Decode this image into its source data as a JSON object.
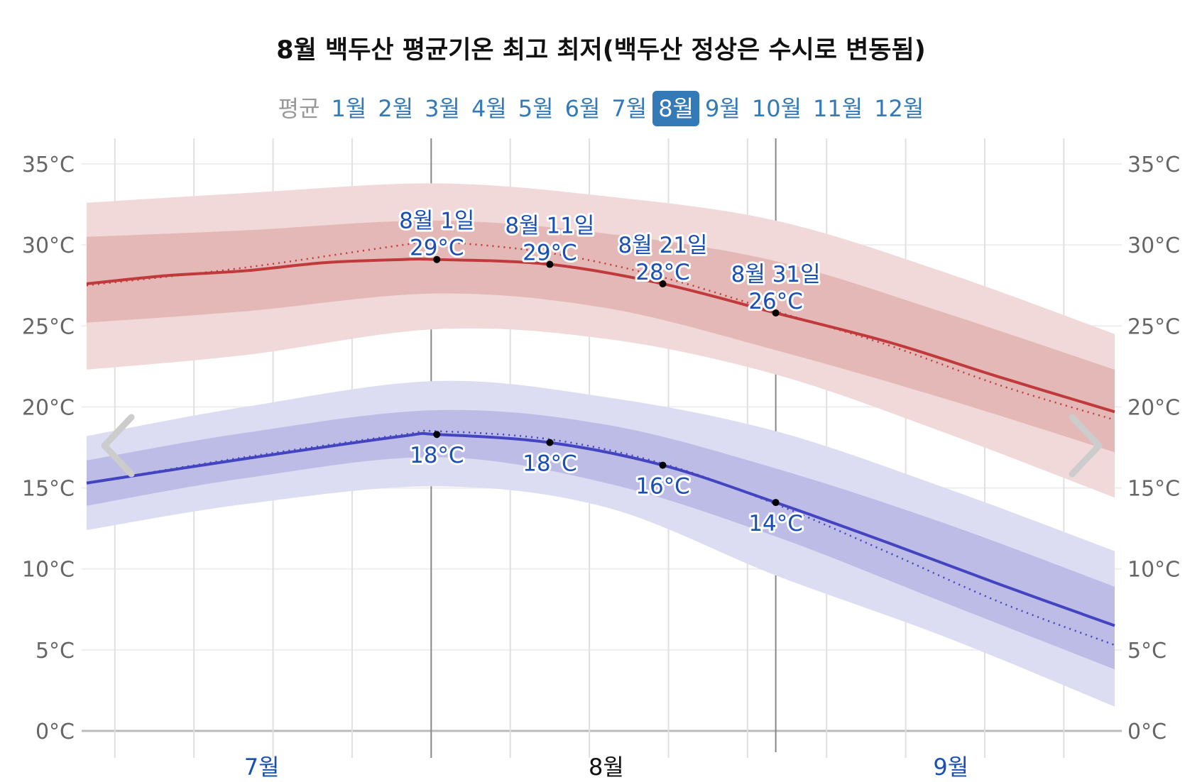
{
  "title": "8월 백두산 평균기온 최고 최저(백두산 정상은 수시로 변동됨)",
  "tabs": [
    {
      "label": "평균",
      "active": false
    },
    {
      "label": "1월",
      "active": false
    },
    {
      "label": "2월",
      "active": false
    },
    {
      "label": "3월",
      "active": false
    },
    {
      "label": "4월",
      "active": false
    },
    {
      "label": "5월",
      "active": false
    },
    {
      "label": "6월",
      "active": false
    },
    {
      "label": "7월",
      "active": false
    },
    {
      "label": "8월",
      "active": true
    },
    {
      "label": "9월",
      "active": false
    },
    {
      "label": "10월",
      "active": false
    },
    {
      "label": "11월",
      "active": false
    },
    {
      "label": "12월",
      "active": false
    }
  ],
  "nav": {
    "prev_icon": "chevron-left-icon",
    "next_icon": "chevron-right-icon"
  },
  "chart_data": {
    "type": "area",
    "title": "8월 백두산 평균기온 최고 최저(백두산 정상은 수시로 변동됨)",
    "x_unit": "days from 7월 1일",
    "xlim": [
      0,
      91
    ],
    "ylim": [
      0,
      35
    ],
    "y_ticks": [
      "0°C",
      "5°C",
      "10°C",
      "15°C",
      "20°C",
      "25°C",
      "30°C",
      "35°C"
    ],
    "y_tick_values": [
      0,
      5,
      10,
      15,
      20,
      25,
      30,
      35
    ],
    "x_month_labels": [
      {
        "label": "7월",
        "day": 15.5,
        "color": "#1a4fb5"
      },
      {
        "label": "8월",
        "day": 46,
        "color": "#111111"
      },
      {
        "label": "9월",
        "day": 76.5,
        "color": "#1a4fb5"
      }
    ],
    "grid": true,
    "colors": {
      "high": "#c0393b",
      "high_band_inner": "#e5b8b8",
      "high_band_outer": "#f2d9d9",
      "low": "#4444c0",
      "low_band_inner": "#bcbce6",
      "low_band_outer": "#dcdcf2"
    },
    "series": [
      {
        "name": "high_mean",
        "x": [
          0,
          7,
          14,
          21,
          28,
          31,
          41,
          51,
          61,
          71,
          81,
          91
        ],
        "values": [
          27.6,
          28.1,
          28.4,
          28.9,
          29.1,
          29.1,
          28.8,
          27.6,
          25.8,
          24.0,
          21.8,
          19.7
        ]
      },
      {
        "name": "high_trend",
        "x": [
          0,
          14,
          28,
          31,
          41,
          51,
          61,
          71,
          81,
          91
        ],
        "values": [
          27.5,
          28.6,
          30.0,
          30.2,
          29.5,
          28.0,
          25.9,
          23.8,
          21.3,
          19.2
        ]
      },
      {
        "name": "high_band_outer",
        "x": [
          0,
          14,
          31,
          46,
          61,
          76,
          91
        ],
        "upper": [
          32.6,
          33.2,
          33.8,
          33.0,
          31.5,
          28.3,
          24.5
        ],
        "lower": [
          22.3,
          23.2,
          24.8,
          24.2,
          22.0,
          18.4,
          14.4
        ]
      },
      {
        "name": "high_band_inner",
        "x": [
          0,
          14,
          31,
          46,
          61,
          76,
          91
        ],
        "upper": [
          30.5,
          30.9,
          31.5,
          30.7,
          29.0,
          25.8,
          22.3
        ],
        "lower": [
          25.2,
          25.9,
          27.0,
          26.1,
          23.5,
          20.5,
          17.2
        ]
      },
      {
        "name": "low_mean",
        "x": [
          0,
          14,
          28,
          31,
          41,
          51,
          61,
          71,
          81,
          91
        ],
        "values": [
          15.3,
          16.8,
          18.2,
          18.3,
          17.8,
          16.4,
          14.1,
          11.6,
          9.0,
          6.5
        ]
      },
      {
        "name": "low_trend",
        "x": [
          0,
          14,
          28,
          31,
          41,
          51,
          61,
          71,
          81,
          91
        ],
        "values": [
          15.3,
          16.9,
          18.3,
          18.5,
          18.0,
          16.5,
          14.0,
          11.0,
          7.9,
          5.3
        ]
      },
      {
        "name": "low_band_outer",
        "x": [
          0,
          14,
          31,
          46,
          61,
          76,
          91
        ],
        "upper": [
          18.2,
          20.0,
          21.6,
          20.6,
          18.5,
          15.0,
          11.1
        ],
        "lower": [
          12.4,
          14.0,
          15.1,
          13.8,
          9.6,
          5.8,
          1.5
        ]
      },
      {
        "name": "low_band_inner",
        "x": [
          0,
          14,
          31,
          46,
          61,
          76,
          91
        ],
        "upper": [
          16.7,
          18.4,
          19.8,
          18.9,
          16.2,
          12.8,
          8.9
        ],
        "lower": [
          13.9,
          15.6,
          16.9,
          15.3,
          12.0,
          7.9,
          3.8
        ]
      }
    ],
    "annotations": [
      {
        "date": "8월 1일",
        "day": 31,
        "high": 29.1,
        "high_label": "29°C",
        "low": 18.3,
        "low_label": "18°C"
      },
      {
        "date": "8월 11일",
        "day": 41,
        "high": 28.8,
        "high_label": "29°C",
        "low": 17.8,
        "low_label": "18°C"
      },
      {
        "date": "8월 21일",
        "day": 51,
        "high": 27.6,
        "high_label": "28°C",
        "low": 16.4,
        "low_label": "16°C"
      },
      {
        "date": "8월 31일",
        "day": 61,
        "high": 25.8,
        "high_label": "26°C",
        "low": 14.1,
        "low_label": "14°C"
      }
    ],
    "highlight_days": [
      31,
      61
    ]
  }
}
